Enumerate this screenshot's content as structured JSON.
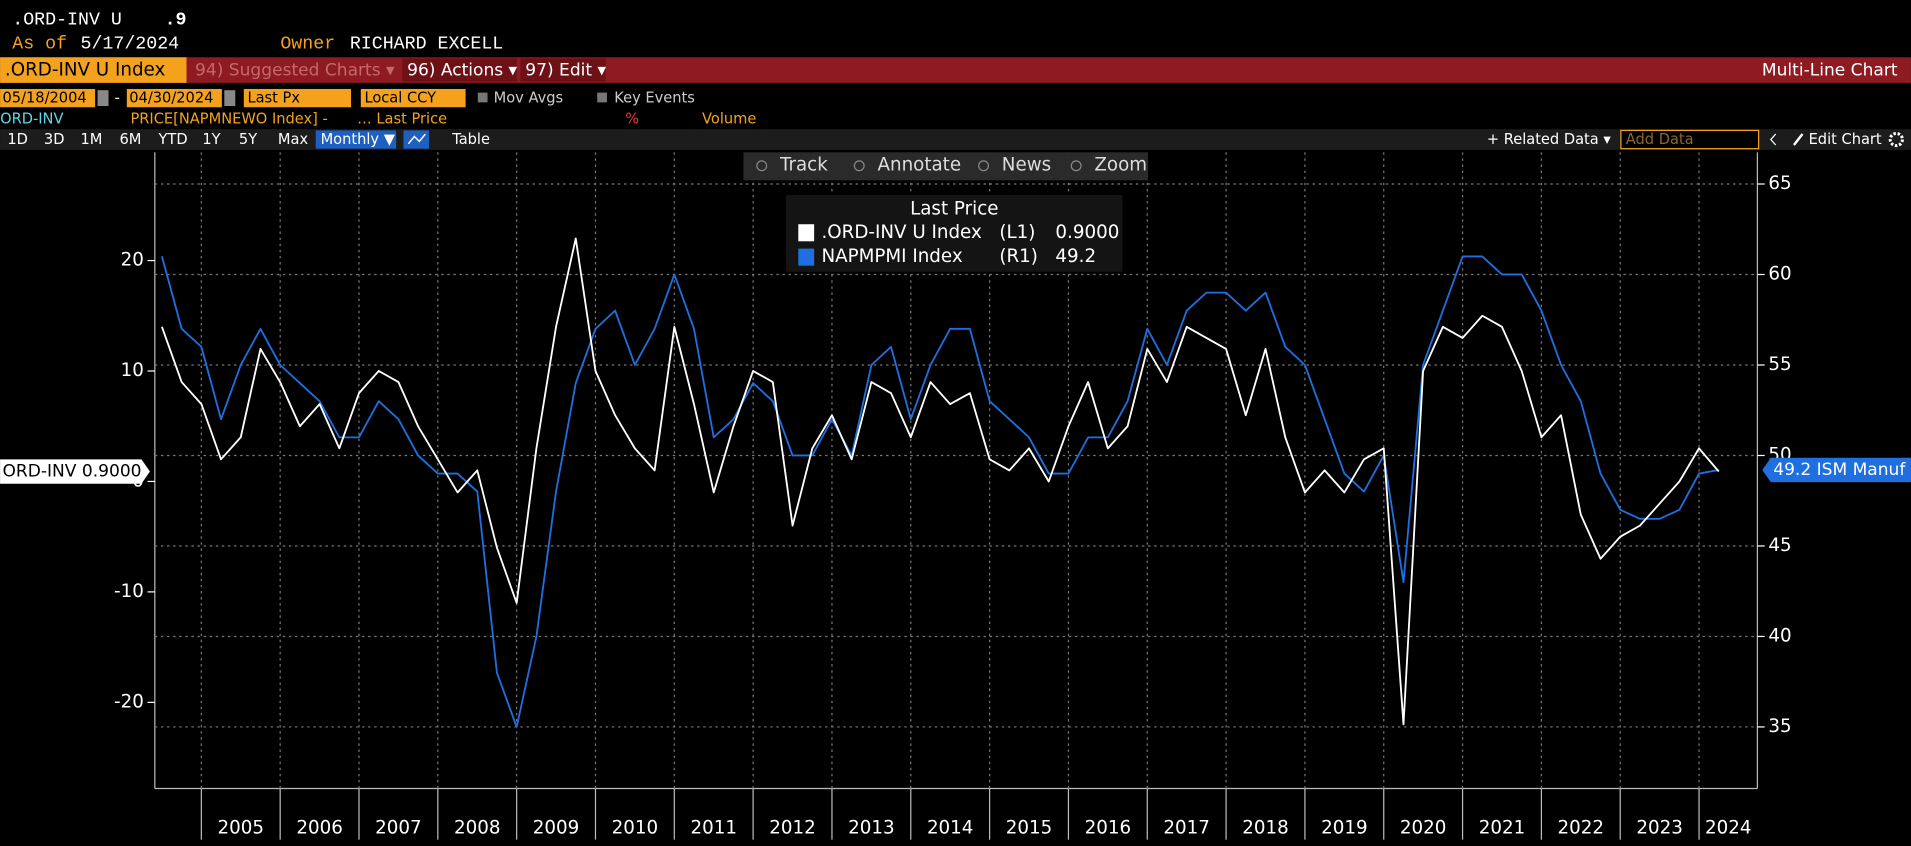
{
  "header": {
    "ticker": ".ORD-INV U",
    "value": ".9",
    "as_of_label": "As of",
    "as_of": "5/17/2024",
    "owner_label": "Owner",
    "owner": "RICHARD EXCELL"
  },
  "toolbar": {
    "security": ".ORD-INV U Index",
    "suggested": "94) Suggested Charts ▾",
    "actions": "96) Actions ▾",
    "edit": "97) Edit ▾",
    "chart_type": "Multi-Line Chart"
  },
  "settings": {
    "start": "05/18/2004",
    "dash": "-",
    "end": "04/30/2024",
    "field": "Last Px",
    "currency": "Local CCY",
    "mov_avgs": "Mov Avgs",
    "key_events": "Key Events"
  },
  "studies": {
    "name": "ORD-INV",
    "expr": "PRICE[NAPMNEWO Index] -",
    "field": "… Last Price",
    "pct": "%",
    "volume": "Volume"
  },
  "controls": {
    "periods": [
      "1D",
      "3D",
      "1M",
      "6M",
      "YTD",
      "1Y",
      "5Y",
      "Max"
    ],
    "frequency": "Monthly ▼",
    "table": "Table",
    "related": "+ Related Data ▾",
    "add_data": "Add Data",
    "edit_chart": "Edit Chart"
  },
  "tools": [
    "Track",
    "Annotate",
    "News",
    "Zoom"
  ],
  "chart_data": {
    "type": "line",
    "legend_title": "Last Price",
    "x": [
      2004.5,
      2004.75,
      2005,
      2005.25,
      2005.5,
      2005.75,
      2006,
      2006.25,
      2006.5,
      2006.75,
      2007,
      2007.25,
      2007.5,
      2007.75,
      2008,
      2008.25,
      2008.5,
      2008.75,
      2009,
      2009.25,
      2009.5,
      2009.75,
      2010,
      2010.25,
      2010.5,
      2010.75,
      2011,
      2011.25,
      2011.5,
      2011.75,
      2012,
      2012.25,
      2012.5,
      2012.75,
      2013,
      2013.25,
      2013.5,
      2013.75,
      2014,
      2014.25,
      2014.5,
      2014.75,
      2015,
      2015.25,
      2015.5,
      2015.75,
      2016,
      2016.25,
      2016.5,
      2016.75,
      2017,
      2017.25,
      2017.5,
      2017.75,
      2018,
      2018.25,
      2018.5,
      2018.75,
      2019,
      2019.25,
      2019.5,
      2019.75,
      2020,
      2020.25,
      2020.5,
      2020.75,
      2021,
      2021.25,
      2021.5,
      2021.75,
      2022,
      2022.25,
      2022.5,
      2022.75,
      2023,
      2023.25,
      2023.5,
      2023.75,
      2024,
      2024.25
    ],
    "series": [
      {
        "name": ".ORD-INV U Index",
        "axis_label": "(L1)",
        "last_label": "0.9000",
        "tag": "ORD-INV 0.9000",
        "color": "#ffffff",
        "axis": "y",
        "values": [
          14,
          9,
          7,
          2,
          4,
          12,
          9,
          5,
          7,
          3,
          8,
          10,
          9,
          5,
          2,
          -1,
          1,
          -6,
          -11,
          3,
          14,
          22,
          10,
          6,
          3,
          1,
          14,
          7,
          -1,
          5,
          10,
          9,
          -4,
          3,
          6,
          2,
          9,
          8,
          4,
          9,
          7,
          8,
          2,
          1,
          3,
          0,
          5,
          9,
          3,
          5,
          12,
          9,
          14,
          13,
          12,
          6,
          12,
          4,
          -1,
          1,
          -1,
          2,
          3,
          -22,
          10,
          14,
          13,
          15,
          14,
          10,
          4,
          6,
          -3,
          -7,
          -5,
          -4,
          -2,
          0,
          3,
          0.9
        ]
      },
      {
        "name": "NAPMPMI Index",
        "axis_label": "(R1)",
        "last_label": "49.2",
        "tag": "49.2 ISM Manuf",
        "color": "#1f6fe0",
        "axis": "y2",
        "values": [
          61,
          57,
          56,
          52,
          55,
          57,
          55,
          54,
          53,
          51,
          51,
          53,
          52,
          50,
          49,
          49,
          48,
          38,
          35,
          40,
          48,
          54,
          57,
          58,
          55,
          57,
          60,
          57,
          51,
          52,
          54,
          53,
          50,
          50,
          52,
          50,
          55,
          56,
          52,
          55,
          57,
          57,
          53,
          52,
          51,
          49,
          49,
          51,
          51,
          53,
          57,
          55,
          58,
          59,
          59,
          58,
          59,
          56,
          55,
          52,
          49,
          48,
          50,
          43,
          55,
          58,
          61,
          61,
          60,
          60,
          58,
          55,
          53,
          49,
          47,
          46.5,
          46.5,
          47,
          49,
          49.2
        ]
      }
    ],
    "xlim": [
      2004.41,
      2024.74
    ],
    "xticks": [
      2005,
      2006,
      2007,
      2008,
      2009,
      2010,
      2011,
      2012,
      2013,
      2014,
      2015,
      2016,
      2017,
      2018,
      2019,
      2020,
      2021,
      2022,
      2023,
      2024
    ],
    "ylim": [
      -27.8,
      29.8
    ],
    "yticks": [
      -20,
      -10,
      0,
      10,
      20
    ],
    "y2lim": [
      31.6,
      66.75
    ],
    "y2ticks": [
      35,
      40,
      45,
      50,
      55,
      60,
      65
    ],
    "grid": true
  }
}
